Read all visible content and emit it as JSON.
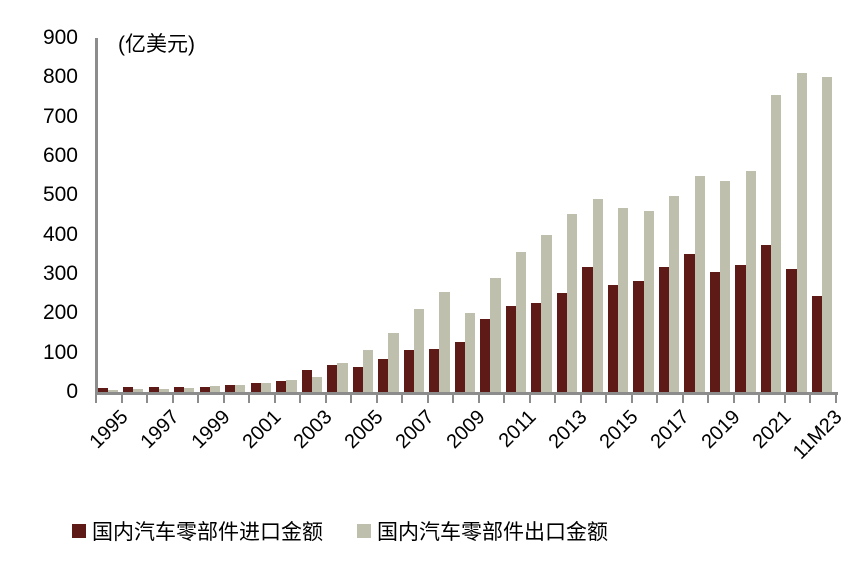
{
  "unit_label": "(亿美元)",
  "colors": {
    "import_bar": "#5d1a16",
    "export_bar": "#bfbfae",
    "axis": "#8c8c8c",
    "text": "#000000",
    "background": "#ffffff"
  },
  "legend": {
    "import_label": "国内汽车零部件进口金额",
    "export_label": "国内汽车零部件出口金额"
  },
  "chart_data": {
    "type": "bar",
    "title": "",
    "ylabel": "亿美元",
    "xlabel": "",
    "ylim": [
      0,
      900
    ],
    "ytick_step": 100,
    "ytick_labels": [
      "0",
      "100",
      "200",
      "300",
      "400",
      "500",
      "600",
      "700",
      "800",
      "900"
    ],
    "grid": false,
    "legend_position": "bottom",
    "categories": [
      "1995",
      "1996",
      "1997",
      "1998",
      "1999",
      "2000",
      "2001",
      "2002",
      "2003",
      "2004",
      "2005",
      "2006",
      "2007",
      "2008",
      "2009",
      "2010",
      "2011",
      "2012",
      "2013",
      "2014",
      "2015",
      "2016",
      "2017",
      "2018",
      "2019",
      "2020",
      "2021",
      "2022",
      "11M23"
    ],
    "x_tick_labels_shown": [
      "1995",
      "1997",
      "1999",
      "2001",
      "2003",
      "2005",
      "2007",
      "2009",
      "2011",
      "2013",
      "2015",
      "2017",
      "2019",
      "2021",
      "11M23"
    ],
    "series": [
      {
        "name": "国内汽车零部件进口金额",
        "color": "#5d1a16",
        "values": [
          10,
          13,
          13,
          12,
          13,
          19,
          24,
          29,
          57,
          68,
          64,
          85,
          106,
          110,
          127,
          185,
          219,
          227,
          251,
          318,
          272,
          281,
          318,
          351,
          306,
          322,
          373,
          312,
          243
        ]
      },
      {
        "name": "国内汽车零部件出口金额",
        "color": "#bfbfae",
        "values": [
          6,
          7,
          8,
          10,
          15,
          19,
          22,
          30,
          38,
          74,
          108,
          150,
          210,
          254,
          202,
          291,
          357,
          398,
          452,
          490,
          469,
          459,
          499,
          550,
          536,
          563,
          755,
          810,
          800
        ]
      }
    ]
  }
}
